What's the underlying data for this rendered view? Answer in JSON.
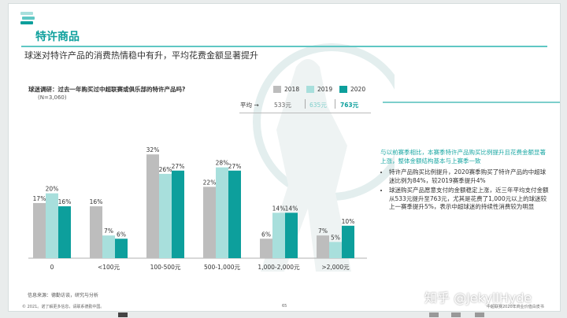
{
  "section_title": "特许商品",
  "subtitle": "球迷对特许产品的消费热情稳中有升，平均花费金额显著提升",
  "question": "球迷调研：过去一年购买过中超联赛或俱乐部的特许产品吗?",
  "sample": "(N=3,060)",
  "average": {
    "label": "平均 →",
    "values": [
      "533元",
      "635元",
      "763元"
    ]
  },
  "colors": {
    "2018": "#bdbdbd",
    "2019": "#a8dfdc",
    "2020": "#0d9f9c",
    "accent": "#1aa7a3"
  },
  "chart_data": {
    "type": "bar",
    "categories": [
      "0",
      "<100元",
      "100-500元",
      "500-1,000元",
      "1,000-2,000元",
      ">2,000元"
    ],
    "series": [
      {
        "name": "2018",
        "values": [
          17,
          16,
          32,
          22,
          6,
          7
        ],
        "labels": [
          "17%",
          "16%",
          "32%",
          "22%",
          "6%",
          "7%"
        ]
      },
      {
        "name": "2019",
        "values": [
          20,
          7,
          26,
          28,
          14,
          5
        ],
        "labels": [
          "20%",
          "7%",
          "26%",
          "28%",
          "14%",
          "5%"
        ]
      },
      {
        "name": "2020",
        "values": [
          16,
          6,
          27,
          27,
          14,
          10
        ],
        "labels": [
          "16%",
          "6%",
          "27%",
          "27%",
          "14%",
          "10%"
        ]
      }
    ],
    "ylim": [
      0,
      35
    ],
    "grid": false,
    "legend": "top-right"
  },
  "panel": {
    "head": "与以前赛季相比，本赛季特许产品购买比例提升且花费金额显著上涨，整体金额结构基本与上赛季一致",
    "bullets": [
      "特许产品购买比例提升，2020赛季购买了特许产品的中超球迷比例为84%，较2019赛季提升4%",
      "球迷购买产品愿意支付的金额稳定上涨，近三年平均支付金额从533元提升至763元，尤其是花费了1,000元以上的球迷较上一赛季提升5%，表示中超球迷的持续性消费较为明显"
    ]
  },
  "source": "信息来源：德勤访谈，研究与分析",
  "footer_left": "© 2021。诺了解更多信息，请联系德勤中国。",
  "page_number": "65",
  "footer_right": "中超联赛2020年商业价值白皮书",
  "watermark": "知乎 @JekyllHyde"
}
